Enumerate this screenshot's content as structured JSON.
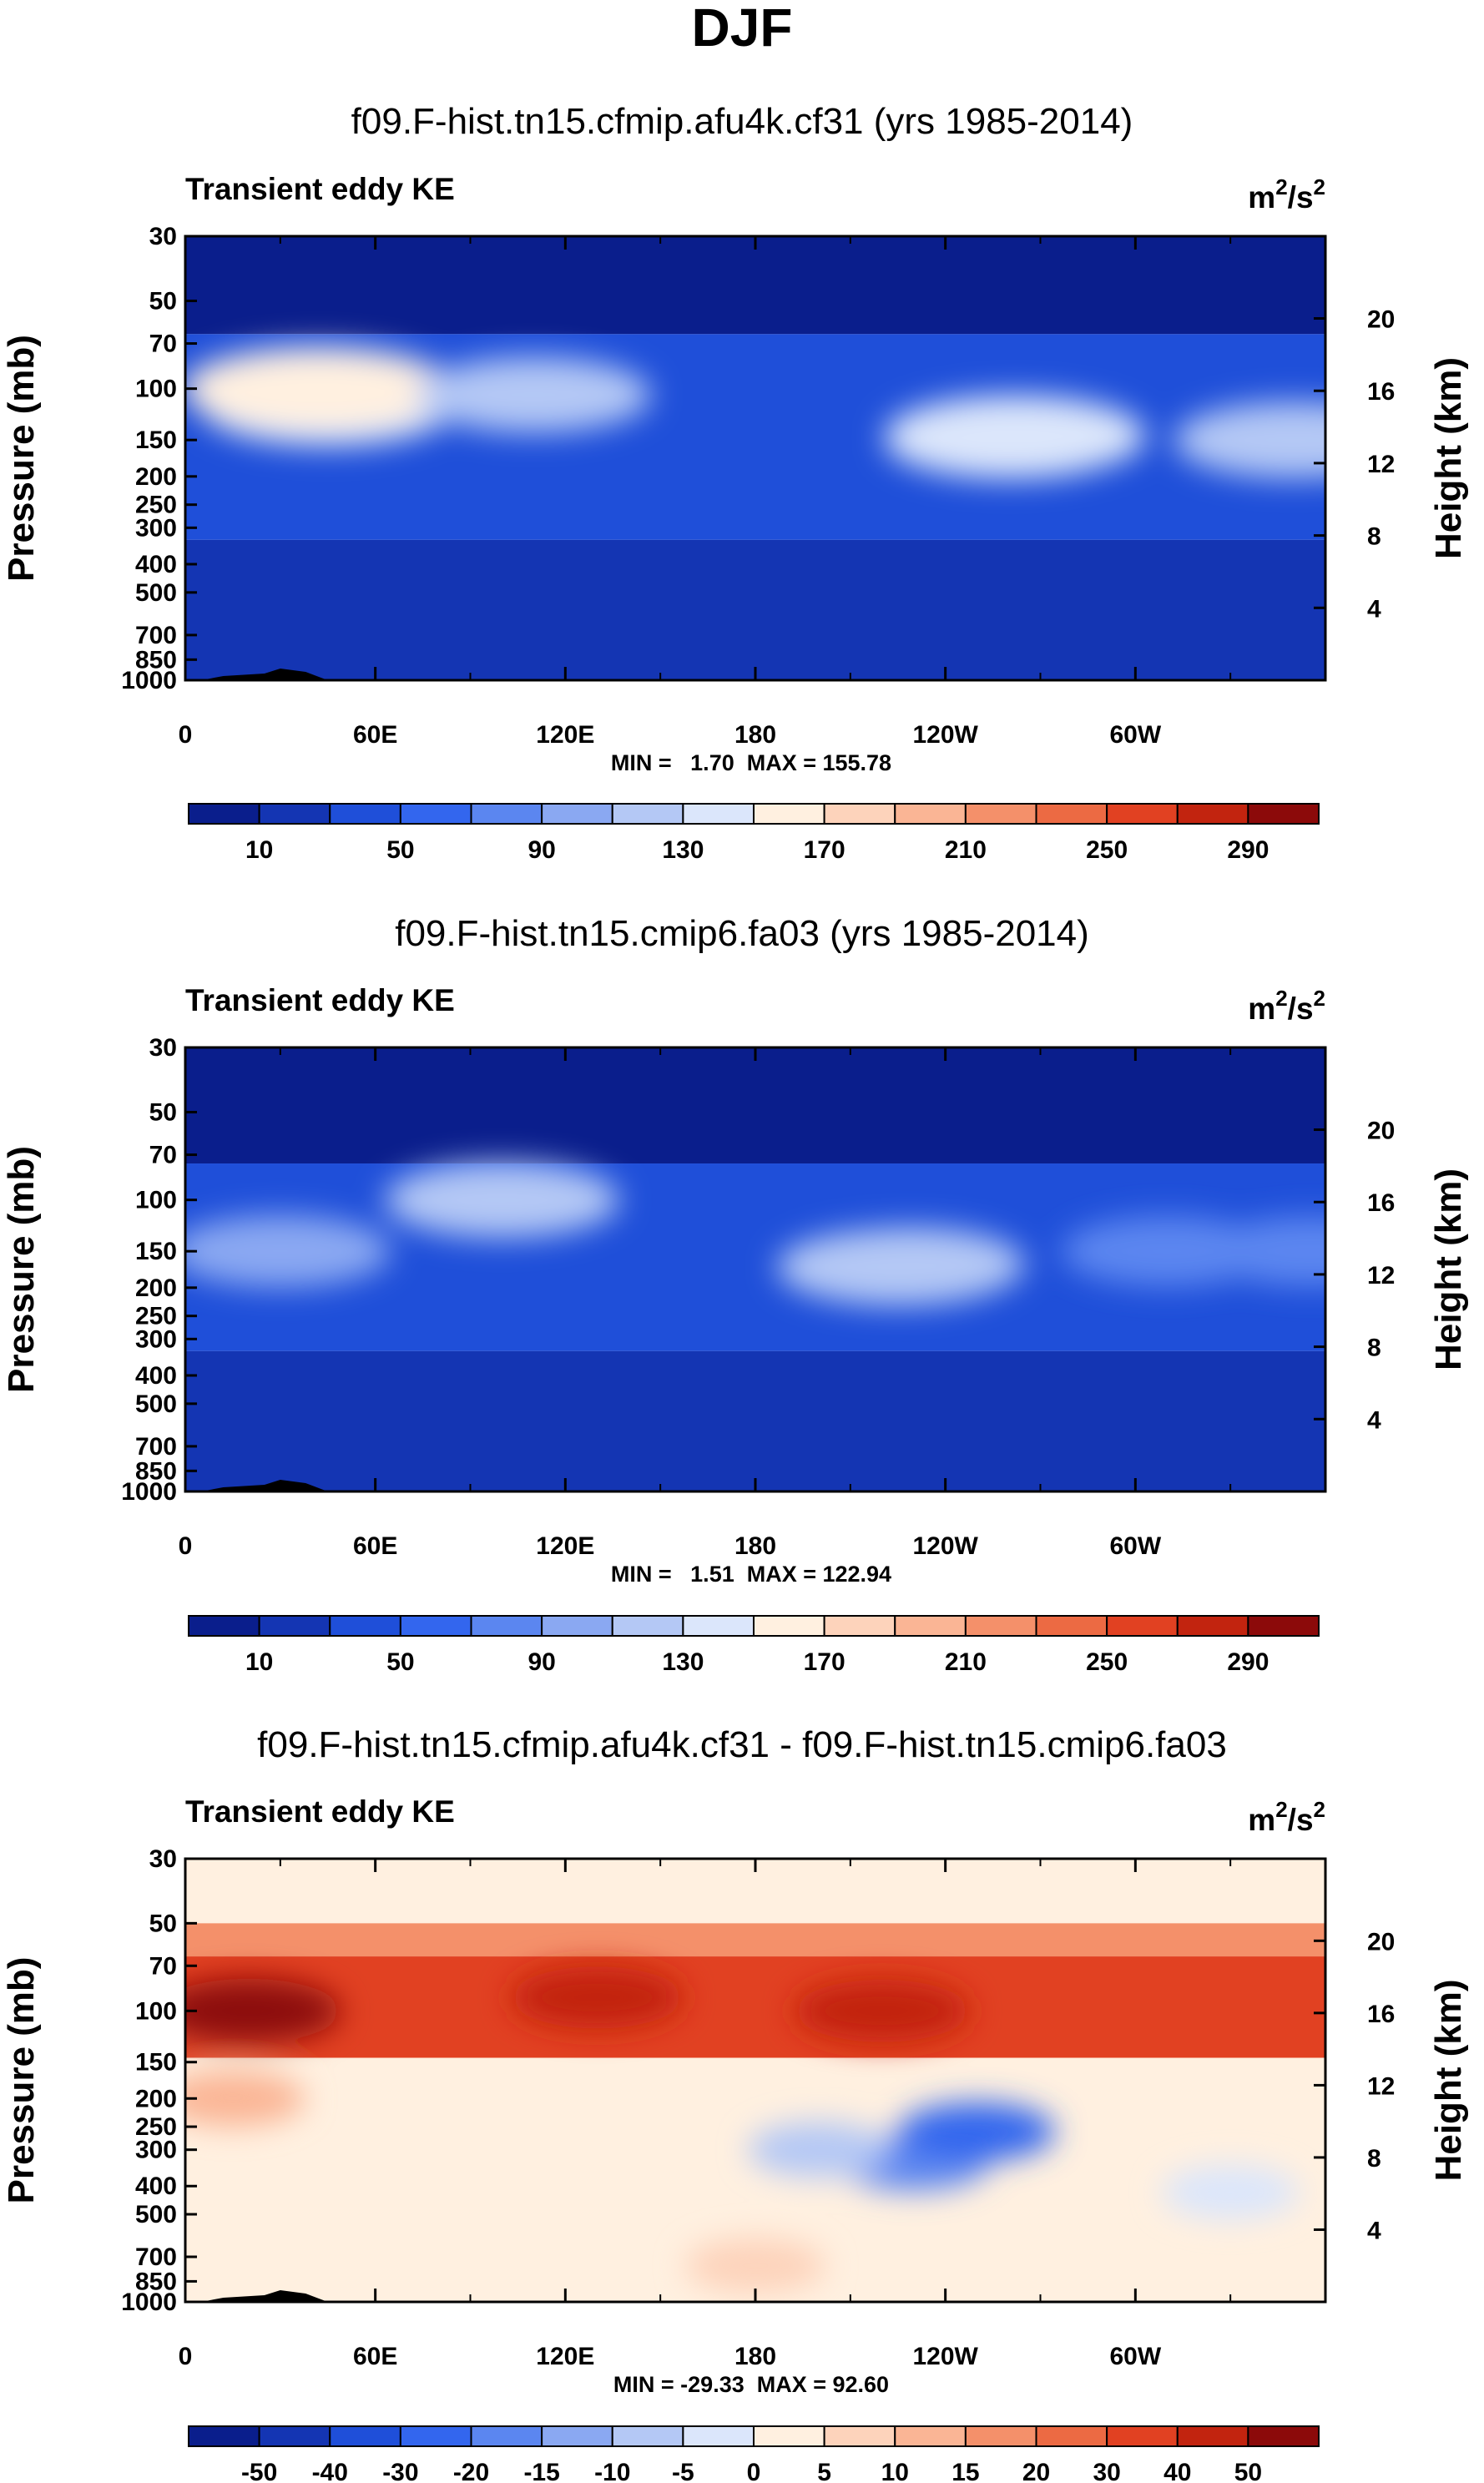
{
  "title": "DJF",
  "colors": {
    "abs_scale": [
      "#0a1e8c",
      "#1435b3",
      "#1f4fd9",
      "#3366ee",
      "#5b86f0",
      "#8aa8f2",
      "#b4c8f5",
      "#dbe6fb",
      "#fff0e0",
      "#fdd3bb",
      "#fab595",
      "#f4906a",
      "#ec6a43",
      "#e14122",
      "#c2240f",
      "#8c0a0a"
    ],
    "diff_scale": [
      "#0a1e8c",
      "#1435b3",
      "#1f4fd9",
      "#3366ee",
      "#5b86f0",
      "#8aa8f2",
      "#b4c8f5",
      "#dbe6fb",
      "#fff0e0",
      "#fdd3bb",
      "#fab595",
      "#f4906a",
      "#ec6a43",
      "#e14122",
      "#c2240f",
      "#8c0a0a"
    ],
    "topography": "#000000"
  },
  "chart_data": [
    {
      "type": "heatmap",
      "title": "f09.F-hist.tn15.cfmip.afu4k.cf31 (yrs 1985-2014)",
      "left_label": "Transient eddy KE",
      "units_base": "m",
      "units_sup1": "2",
      "units_mid": "/s",
      "units_sup2": "2",
      "ylabel": "Pressure (mb)",
      "ylabel_right": "Height (km)",
      "x_ticks": [
        "0",
        "60E",
        "120E",
        "180",
        "120W",
        "60W"
      ],
      "x_tick_values": [
        0,
        60,
        120,
        180,
        240,
        300
      ],
      "xlim": [
        0,
        360
      ],
      "y_ticks": [
        "30",
        "50",
        "70",
        "100",
        "150",
        "200",
        "250",
        "300",
        "400",
        "500",
        "700",
        "850",
        "1000"
      ],
      "y_tick_values": [
        30,
        50,
        70,
        100,
        150,
        200,
        250,
        300,
        400,
        500,
        700,
        850,
        1000
      ],
      "ylim": [
        1000,
        30
      ],
      "right_ticks": [
        "20",
        "16",
        "12",
        "8",
        "4"
      ],
      "right_tick_values": [
        20,
        16,
        12,
        8,
        4
      ],
      "min_max_text": "MIN =   1.70  MAX = 155.78",
      "min": 1.7,
      "max": 155.78,
      "colorbar": {
        "levels": [
          10,
          30,
          50,
          70,
          90,
          110,
          130,
          150,
          170,
          190,
          210,
          230,
          250,
          270,
          290
        ],
        "labels": [
          "10",
          "50",
          "90",
          "130",
          "170",
          "210",
          "250",
          "290"
        ]
      },
      "features": [
        {
          "kind": "band",
          "desc": "stratosphere",
          "p_top": 30,
          "p_bottom": 65,
          "value": 8
        },
        {
          "kind": "band",
          "desc": "tropopause ring",
          "p_top": 65,
          "p_bottom": 330,
          "value": 45
        },
        {
          "kind": "band",
          "desc": "troposphere",
          "p_top": 330,
          "p_bottom": 1000,
          "value": 20
        },
        {
          "kind": "blob",
          "lon": 45,
          "p": 115,
          "value": 130
        },
        {
          "kind": "blob",
          "lon": 42,
          "p": 100,
          "value": 152
        },
        {
          "kind": "blob",
          "lon": 110,
          "p": 105,
          "value": 110
        },
        {
          "kind": "blob",
          "lon": 260,
          "p": 150,
          "value": 125
        },
        {
          "kind": "blob",
          "lon": 262,
          "p": 145,
          "value": 138
        },
        {
          "kind": "blob",
          "lon": 350,
          "p": 150,
          "value": 115
        }
      ]
    },
    {
      "type": "heatmap",
      "title": "f09.F-hist.tn15.cmip6.fa03 (yrs 1985-2014)",
      "left_label": "Transient eddy KE",
      "units_base": "m",
      "units_sup1": "2",
      "units_mid": "/s",
      "units_sup2": "2",
      "ylabel": "Pressure (mb)",
      "ylabel_right": "Height (km)",
      "x_ticks": [
        "0",
        "60E",
        "120E",
        "180",
        "120W",
        "60W"
      ],
      "x_tick_values": [
        0,
        60,
        120,
        180,
        240,
        300
      ],
      "xlim": [
        0,
        360
      ],
      "y_ticks": [
        "30",
        "50",
        "70",
        "100",
        "150",
        "200",
        "250",
        "300",
        "400",
        "500",
        "700",
        "850",
        "1000"
      ],
      "y_tick_values": [
        30,
        50,
        70,
        100,
        150,
        200,
        250,
        300,
        400,
        500,
        700,
        850,
        1000
      ],
      "ylim": [
        1000,
        30
      ],
      "right_ticks": [
        "20",
        "16",
        "12",
        "8",
        "4"
      ],
      "right_tick_values": [
        20,
        16,
        12,
        8,
        4
      ],
      "min_max_text": "MIN =   1.51  MAX = 122.94",
      "min": 1.51,
      "max": 122.94,
      "colorbar": {
        "levels": [
          10,
          30,
          50,
          70,
          90,
          110,
          130,
          150,
          170,
          190,
          210,
          230,
          250,
          270,
          290
        ],
        "labels": [
          "10",
          "50",
          "90",
          "130",
          "170",
          "210",
          "250",
          "290"
        ]
      },
      "features": [
        {
          "kind": "band",
          "desc": "stratosphere",
          "p_top": 30,
          "p_bottom": 75,
          "value": 8
        },
        {
          "kind": "band",
          "desc": "tropopause ring",
          "p_top": 75,
          "p_bottom": 330,
          "value": 40
        },
        {
          "kind": "band",
          "desc": "troposphere",
          "p_top": 330,
          "p_bottom": 1000,
          "value": 20
        },
        {
          "kind": "blob",
          "lon": 100,
          "p": 100,
          "value": 110
        },
        {
          "kind": "blob",
          "lon": 30,
          "p": 150,
          "value": 95
        },
        {
          "kind": "blob",
          "lon": 230,
          "p": 165,
          "value": 100
        },
        {
          "kind": "blob",
          "lon": 225,
          "p": 170,
          "value": 118
        },
        {
          "kind": "blob",
          "lon": 310,
          "p": 150,
          "value": 85
        },
        {
          "kind": "blob",
          "lon": 355,
          "p": 150,
          "value": 80
        }
      ]
    },
    {
      "type": "heatmap",
      "title": "f09.F-hist.tn15.cfmip.afu4k.cf31 - f09.F-hist.tn15.cmip6.fa03",
      "left_label": "Transient eddy KE",
      "units_base": "m",
      "units_sup1": "2",
      "units_mid": "/s",
      "units_sup2": "2",
      "ylabel": "Pressure (mb)",
      "ylabel_right": "Height (km)",
      "x_ticks": [
        "0",
        "60E",
        "120E",
        "180",
        "120W",
        "60W"
      ],
      "x_tick_values": [
        0,
        60,
        120,
        180,
        240,
        300
      ],
      "xlim": [
        0,
        360
      ],
      "y_ticks": [
        "30",
        "50",
        "70",
        "100",
        "150",
        "200",
        "250",
        "300",
        "400",
        "500",
        "700",
        "850",
        "1000"
      ],
      "y_tick_values": [
        30,
        50,
        70,
        100,
        150,
        200,
        250,
        300,
        400,
        500,
        700,
        850,
        1000
      ],
      "ylim": [
        1000,
        30
      ],
      "right_ticks": [
        "20",
        "16",
        "12",
        "8",
        "4"
      ],
      "right_tick_values": [
        20,
        16,
        12,
        8,
        4
      ],
      "min_max_text": "MIN = -29.33  MAX = 92.60",
      "min": -29.33,
      "max": 92.6,
      "colorbar": {
        "levels": [
          -50,
          -40,
          -30,
          -20,
          -15,
          -10,
          -5,
          0,
          5,
          10,
          15,
          20,
          30,
          40,
          50
        ],
        "labels": [
          "-50",
          "-40",
          "-30",
          "-20",
          "-15",
          "-10",
          "-5",
          "0",
          "5",
          "10",
          "15",
          "20",
          "30",
          "40",
          "50"
        ]
      },
      "features": [
        {
          "kind": "band",
          "desc": "upper stratosphere",
          "p_top": 30,
          "p_bottom": 50,
          "value": 3
        },
        {
          "kind": "band",
          "desc": "positive layer",
          "p_top": 50,
          "p_bottom": 65,
          "value": 18
        },
        {
          "kind": "band",
          "desc": "strong positive layer",
          "p_top": 65,
          "p_bottom": 145,
          "value": 30
        },
        {
          "kind": "band",
          "desc": "troposphere",
          "p_top": 145,
          "p_bottom": 1000,
          "value": 3
        },
        {
          "kind": "blob",
          "lon": 20,
          "p": 100,
          "value": 55
        },
        {
          "kind": "blob",
          "lon": 130,
          "p": 90,
          "value": 42
        },
        {
          "kind": "blob",
          "lon": 220,
          "p": 100,
          "value": 45
        },
        {
          "kind": "blob",
          "lon": 15,
          "p": 200,
          "value": 12
        },
        {
          "kind": "blob",
          "lon": 230,
          "p": 330,
          "value": -20
        },
        {
          "kind": "blob",
          "lon": 250,
          "p": 260,
          "value": -25
        },
        {
          "kind": "blob",
          "lon": 200,
          "p": 300,
          "value": -8
        },
        {
          "kind": "blob",
          "lon": 330,
          "p": 420,
          "value": -4
        },
        {
          "kind": "blob",
          "lon": 180,
          "p": 750,
          "value": 8
        }
      ]
    }
  ]
}
